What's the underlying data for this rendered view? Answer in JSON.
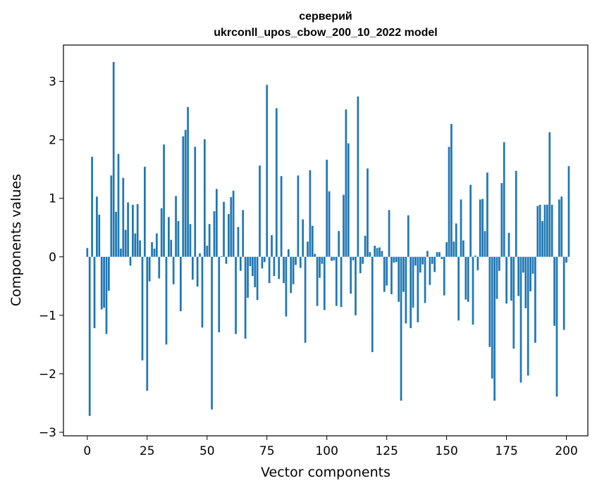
{
  "chart_data": {
    "type": "bar",
    "title_line1": "серверий",
    "title_line2": "ukrconll_upos_cbow_200_10_2022 model",
    "xlabel": "Vector components",
    "ylabel": "Components values",
    "xlim": [
      -9.95,
      208.95
    ],
    "ylim": [
      -3.06,
      3.62
    ],
    "xticks": [
      0,
      25,
      50,
      75,
      100,
      125,
      150,
      175,
      200
    ],
    "yticks": [
      -3,
      -2,
      -1,
      0,
      1,
      2,
      3
    ],
    "bar_color": "#1f77b4",
    "grid": false,
    "values": [
      0.15,
      -2.72,
      1.71,
      -1.22,
      1.03,
      0.72,
      -0.9,
      -0.87,
      -1.32,
      -0.58,
      1.39,
      3.33,
      0.77,
      1.76,
      0.14,
      1.35,
      0.46,
      0.93,
      -0.15,
      0.89,
      0.4,
      0.9,
      0.28,
      -1.77,
      1.54,
      -2.29,
      -0.42,
      0.25,
      0.14,
      0.4,
      -0.37,
      0.83,
      1.92,
      -1.5,
      0.68,
      0.29,
      -0.47,
      1.04,
      0.61,
      -0.93,
      2.06,
      2.17,
      2.56,
      0.56,
      -0.39,
      1.88,
      -0.51,
      0.06,
      -1.21,
      2.01,
      0.19,
      0.56,
      -2.61,
      0.78,
      1.16,
      -1.29,
      0.01,
      0.94,
      -0.12,
      0.73,
      1.02,
      1.13,
      -1.32,
      0.51,
      -0.24,
      0.8,
      -1.4,
      -0.7,
      -0.16,
      -0.33,
      -0.52,
      -0.74,
      1.56,
      -0.2,
      -0.09,
      2.94,
      -0.45,
      0.37,
      -0.33,
      2.54,
      -0.38,
      1.38,
      -0.45,
      -1.02,
      0.13,
      -0.62,
      -0.47,
      -0.14,
      1.39,
      -0.19,
      0.64,
      -1.47,
      0.26,
      1.48,
      0.53,
      0.05,
      -0.84,
      -0.36,
      -0.12,
      -0.91,
      1.66,
      1.12,
      -0.07,
      -0.06,
      -0.84,
      0.44,
      -0.86,
      1.06,
      2.52,
      1.94,
      -0.63,
      -0.06,
      -1.0,
      2.74,
      -0.28,
      -0.12,
      0.36,
      1.51,
      0.08,
      -1.63,
      0.19,
      0.15,
      0.16,
      0.1,
      -0.6,
      -0.49,
      0.8,
      -0.64,
      -0.1,
      -0.09,
      -0.77,
      -2.46,
      -0.6,
      -1.14,
      0.71,
      -1.22,
      -0.87,
      -0.15,
      -1.12,
      -0.27,
      -0.13,
      -0.79,
      0.1,
      -0.48,
      -0.12,
      -0.26,
      0.08,
      0.08,
      -0.04,
      -0.66,
      0.25,
      1.88,
      2.27,
      0.26,
      0.57,
      -1.09,
      0.98,
      0.28,
      -0.73,
      -0.77,
      1.23,
      -1.16,
      0.02,
      -0.23,
      0.98,
      0.99,
      0.44,
      1.44,
      -1.54,
      -2.08,
      -2.46,
      -0.72,
      -0.24,
      1.26,
      1.96,
      -0.8,
      0.41,
      -0.75,
      -1.57,
      1.47,
      -0.67,
      -2.15,
      -0.27,
      -0.88,
      -2.03,
      -0.59,
      -0.29,
      -1.47,
      0.87,
      0.89,
      0.61,
      0.89,
      0.89,
      2.13,
      0.89,
      -1.18,
      -2.39,
      0.98,
      1.03,
      -1.25,
      -0.1,
      1.55
    ]
  }
}
